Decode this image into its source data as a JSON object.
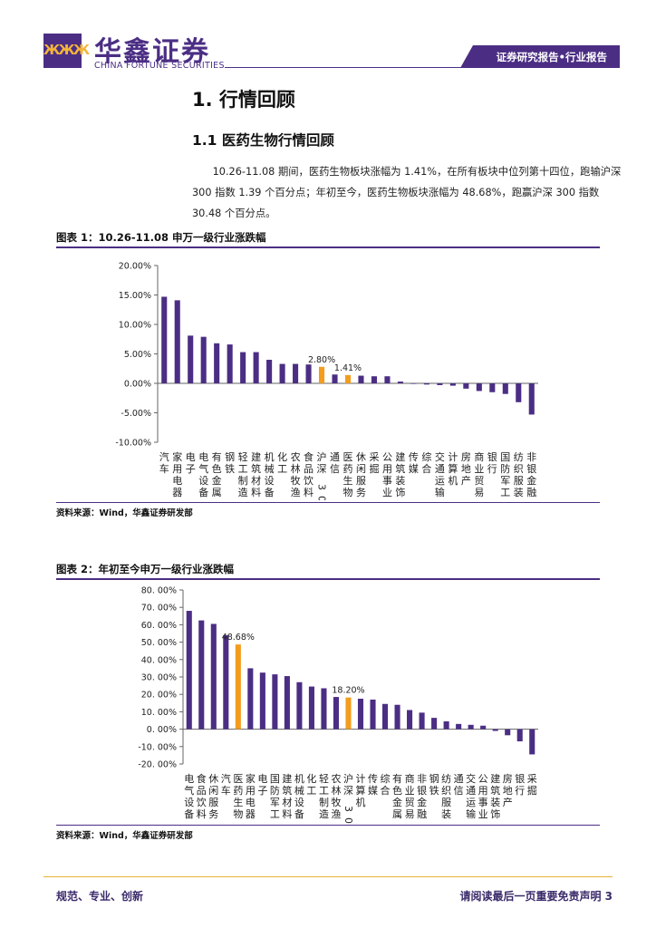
{
  "header": {
    "logo_mark": "ЖЖЖ",
    "company_cn": "华鑫证券",
    "company_en": "CHINA FORTUNE SECURITIES",
    "banner": "证券研究报告•行业报告"
  },
  "section": {
    "h1": "1. 行情回顾",
    "h2": "1.1 医药生物行情回顾",
    "paragraph": "10.26-11.08 期间，医药生物板块涨幅为 1.41%，在所有板块中位列第十四位，跑输沪深 300 指数 1.39 个百分点；年初至今，医药生物板块涨幅为 48.68%，跑赢沪深 300 指数 30.48 个百分点。"
  },
  "figures": [
    {
      "title": "图表 1：10.26-11.08 申万一级行业涨跌幅",
      "source": "资料来源：Wind，华鑫证券研发部"
    },
    {
      "title": "图表 2：年初至今申万一级行业涨跌幅",
      "source": "资料来源：Wind，华鑫证券研发部"
    }
  ],
  "chart_data": [
    {
      "type": "bar",
      "categories": [
        "汽车",
        "家用电器",
        "电子",
        "电气设备",
        "有色金属",
        "钢铁",
        "轻工制造",
        "建筑材料",
        "机械设备",
        "化工",
        "农林牧渔",
        "食品饮料",
        "沪深300",
        "通信",
        "医药生物",
        "休闲服务",
        "采掘",
        "公用事业",
        "建筑装饰",
        "传媒",
        "综合",
        "交通运输",
        "计算机",
        "房地产",
        "商业贸易",
        "银行",
        "国防军工",
        "纺织服装",
        "非银金融"
      ],
      "values": [
        14.7,
        14.1,
        8.1,
        7.9,
        6.8,
        6.6,
        5.3,
        5.3,
        4.0,
        3.3,
        3.3,
        3.2,
        2.8,
        1.5,
        1.41,
        1.3,
        1.2,
        1.2,
        0.3,
        0.0,
        -0.2,
        -0.3,
        -0.4,
        -0.9,
        -1.3,
        -1.5,
        -1.8,
        -3.2,
        -5.3
      ],
      "highlight": [
        "沪深300",
        "医药生物"
      ],
      "data_labels": [
        {
          "category": "沪深300",
          "text": "2.80%"
        },
        {
          "category": "医药生物",
          "text": "1.41%"
        }
      ],
      "ylim": [
        -10,
        20
      ],
      "yticks": [
        "20.00%",
        "15.00%",
        "10.00%",
        "5.00%",
        "0.00%",
        "-5.00%",
        "-10.00%"
      ],
      "colors": {
        "bar": "#4b2e84",
        "highlight": "#f39c1e"
      },
      "title": "",
      "xlabel": "",
      "ylabel": ""
    },
    {
      "type": "bar",
      "categories": [
        "电气设备",
        "食品饮料",
        "休闲服务",
        "汽车",
        "医药生物",
        "家用电器",
        "电子",
        "国防军工",
        "建筑材料",
        "机械设备",
        "化工",
        "轻工制造",
        "农林牧渔",
        "沪深300",
        "计算机",
        "传媒",
        "综合",
        "有色金属",
        "商业贸易",
        "非银金融",
        "钢铁",
        "纺织服装",
        "通信",
        "交通运输",
        "公用事业",
        "建筑装饰",
        "房地产",
        "银行",
        "采掘"
      ],
      "values": [
        68.0,
        62.5,
        60.5,
        54.0,
        48.68,
        35.0,
        32.5,
        31.5,
        30.5,
        27.0,
        24.5,
        23.5,
        18.5,
        18.2,
        17.5,
        17.0,
        14.5,
        14.0,
        11.0,
        9.5,
        6.5,
        4.5,
        3.0,
        2.5,
        2.0,
        -1.0,
        -3.5,
        -7.0,
        -14.5
      ],
      "highlight": [
        "医药生物",
        "沪深300"
      ],
      "data_labels": [
        {
          "category": "医药生物",
          "text": "48.68%"
        },
        {
          "category": "沪深300",
          "text": "18.20%"
        }
      ],
      "ylim": [
        -20,
        80
      ],
      "yticks": [
        "80. 00%",
        "70. 00%",
        "60. 00%",
        "50. 00%",
        "40. 00%",
        "30. 00%",
        "20. 00%",
        "10. 00%",
        "0. 00%",
        "-10. 00%",
        "-20. 00%"
      ],
      "colors": {
        "bar": "#4b2e84",
        "highlight": "#f39c1e"
      },
      "title": "",
      "xlabel": "",
      "ylabel": ""
    }
  ],
  "footer": {
    "left": "规范、专业、创新",
    "right": "请阅读最后一页重要免责声明 3"
  }
}
